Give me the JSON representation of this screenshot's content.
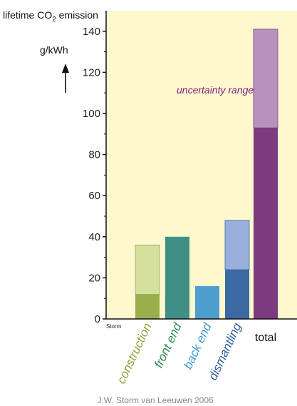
{
  "chart_data": {
    "type": "bar",
    "title": "lifetime CO",
    "title_sub": "2",
    "title_suffix": " emission",
    "ylabel": "g/kWh",
    "ylim": [
      0,
      150
    ],
    "yticks": [
      0,
      20,
      40,
      60,
      80,
      100,
      120,
      140
    ],
    "grid": false,
    "categories": [
      "construction",
      "front end",
      "back end",
      "dismantling",
      "total"
    ],
    "low_values": [
      12,
      40,
      16,
      24,
      93
    ],
    "high_values": [
      36,
      40,
      16,
      48,
      141
    ],
    "annotation": "uncertainty range",
    "corner_label": "Storm",
    "credit": "J.W. Storm van Leeuwen 2006",
    "colors": {
      "background": "#fff8cf",
      "construction_dark": "#9aae4b",
      "construction_light": "#d5df9d",
      "front_end": "#3f8f86",
      "back_end": "#4f9ed0",
      "dismantling_dark": "#3b6aa2",
      "dismantling_light": "#9ab0dc",
      "total_dark": "#7b3b7c",
      "total_light": "#b991be",
      "annotation": "#7a1d7e",
      "label_construction": "#8aa23a",
      "label_front_end": "#2e8a4d",
      "label_back_end": "#3a9ad0",
      "label_dismantling": "#2c5f9a"
    }
  }
}
